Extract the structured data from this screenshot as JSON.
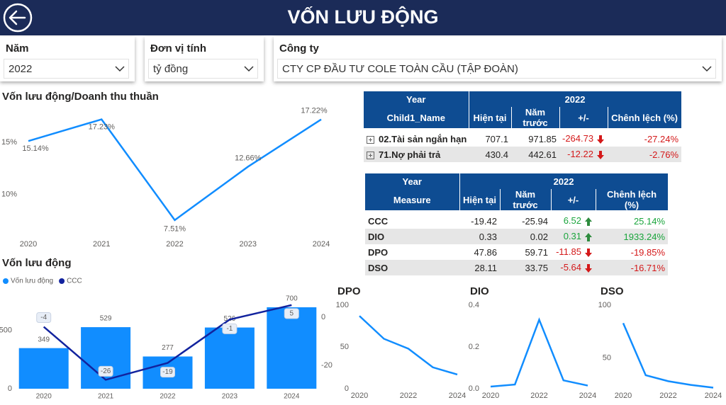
{
  "header": {
    "title": "VỐN LƯU ĐỘNG"
  },
  "filters": [
    {
      "label": "Năm",
      "value": "2022"
    },
    {
      "label": "Đơn vị tính",
      "value": "tỷ đồng"
    },
    {
      "label": "Công ty",
      "value": "CTY CP ĐẦU TƯ COLE TOÀN CẦU (TẬP ĐOÀN)"
    }
  ],
  "tables": [
    {
      "columns_top": [
        "Year",
        "2022"
      ],
      "columns": [
        "Child1_Name",
        "Hiện tại",
        "Năm trước",
        "+/-",
        "Chênh lệch (%)"
      ],
      "rows": [
        [
          "02.Tài sản ngắn hạn",
          "707.1",
          "971.85",
          "-264.73",
          "-27.24%"
        ],
        [
          "71.Nợ phải trả",
          "430.4",
          "442.61",
          "-12.22",
          "-2.76%"
        ]
      ]
    },
    {
      "columns_top": [
        "Year",
        "2022"
      ],
      "columns": [
        "Measure",
        "Hiện tại",
        "Năm trước",
        "+/-",
        "Chênh lệch (%)"
      ],
      "rows": [
        [
          "CCC",
          "-19.42",
          "-25.94",
          "6.52",
          "25.14%"
        ],
        [
          "DIO",
          "0.33",
          "0.02",
          "0.31",
          "1933.24%"
        ],
        [
          "DPO",
          "47.86",
          "59.71",
          "-11.85",
          "-19.85%"
        ],
        [
          "DSO",
          "28.11",
          "33.75",
          "-5.64",
          "-16.71%"
        ]
      ]
    }
  ],
  "chart_data": [
    {
      "type": "line",
      "title": "Vốn lưu động/Doanh thu thuần",
      "categories": [
        "2020",
        "2021",
        "2022",
        "2023",
        "2024"
      ],
      "values": [
        15.14,
        17.23,
        7.51,
        12.66,
        17.22
      ],
      "value_labels": [
        "15.14%",
        "17.23%",
        "7.51%",
        "12.66%",
        "17.22%"
      ],
      "color": "#118dff",
      "ylim": [
        6.2,
        18.5
      ],
      "yticks": [
        {
          "value": 10,
          "label": "10%"
        },
        {
          "value": 15,
          "label": "15%"
        }
      ]
    },
    {
      "type": "combo",
      "title": "Vốn lưu động",
      "categories": [
        "2020",
        "2021",
        "2022",
        "2023",
        "2024"
      ],
      "series": [
        {
          "name": "Vốn lưu động",
          "type": "bar",
          "color": "#118dff",
          "values": [
            349,
            529,
            277,
            526,
            700
          ]
        },
        {
          "name": "CCC",
          "type": "line",
          "color": "#12239e",
          "axis": "y2",
          "values": [
            -4,
            -26,
            -19,
            -1,
            5
          ]
        }
      ],
      "ylim": [
        0,
        785
      ],
      "yticks": [
        0,
        500
      ],
      "y2lim": [
        -29.7,
        8.2
      ],
      "y2ticks": [
        0,
        -20
      ],
      "legend": "top-left"
    },
    {
      "type": "line",
      "title": "DPO",
      "categories": [
        "2020",
        null,
        "2022",
        null,
        "2024"
      ],
      "values": [
        87,
        59.71,
        47.86,
        25.6,
        17
      ],
      "color": "#118dff",
      "ylim": [
        0,
        105
      ],
      "yticks": [
        0,
        50,
        100
      ]
    },
    {
      "type": "line",
      "title": "DIO",
      "categories": [
        "2020",
        null,
        "2022",
        null,
        "2024"
      ],
      "values": [
        0.01,
        0.02,
        0.33,
        0.04,
        0.015
      ],
      "color": "#118dff",
      "ylim": [
        0,
        0.42
      ],
      "yticks": [
        {
          "value": 0,
          "label": "0.0"
        },
        0.2,
        {
          "value": 0.4,
          "label": "0.4"
        }
      ]
    },
    {
      "type": "line",
      "title": "DSO",
      "categories": [
        "2020",
        null,
        "2022",
        null,
        "2024"
      ],
      "values": [
        83,
        33.75,
        28.11,
        24.6,
        22
      ],
      "color": "#118dff",
      "ylim": [
        21,
        104
      ],
      "yticks": [
        50,
        100
      ]
    }
  ]
}
